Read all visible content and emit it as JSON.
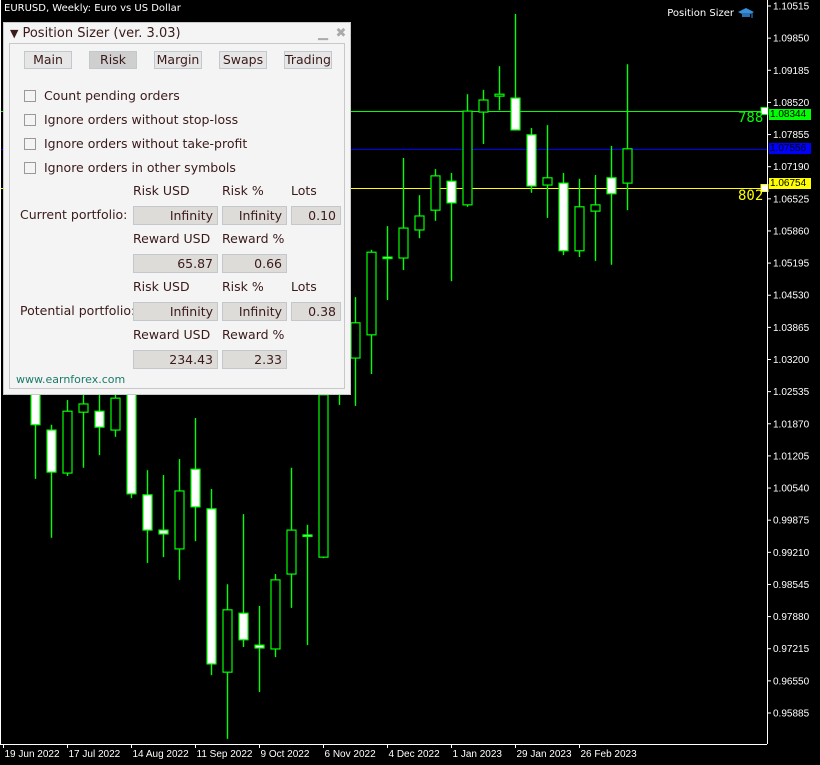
{
  "chart_header": {
    "title": "EURUSD, Weekly:  Euro vs US Dollar",
    "indicator_label": "Position Sizer"
  },
  "panel": {
    "title": "Position Sizer (ver. 3.03)",
    "collapse_icon": "triangle-down",
    "tabs": [
      {
        "label": "Main"
      },
      {
        "label": "Risk",
        "active": true
      },
      {
        "label": "Margin"
      },
      {
        "label": "Swaps"
      },
      {
        "label": "Trading"
      }
    ],
    "checkboxes": [
      {
        "label": "Count pending orders",
        "checked": false
      },
      {
        "label": "Ignore orders without stop-loss",
        "checked": false
      },
      {
        "label": "Ignore orders without take-profit",
        "checked": false
      },
      {
        "label": "Ignore orders in other symbols",
        "checked": false
      }
    ],
    "headers": {
      "risk_usd": "Risk USD",
      "risk_pct": "Risk %",
      "lots": "Lots",
      "reward_usd": "Reward USD",
      "reward_pct": "Reward %"
    },
    "current": {
      "label": "Current portfolio:",
      "risk_usd": "Infinity",
      "risk_pct": "Infinity",
      "lots": "0.10",
      "reward_usd": "65.87",
      "reward_pct": "0.66"
    },
    "potential": {
      "label": "Potential portfolio:",
      "risk_usd": "Infinity",
      "risk_pct": "Infinity",
      "lots": "0.38",
      "reward_usd": "234.43",
      "reward_pct": "2.33"
    },
    "link": "www.earnforex.com"
  },
  "levels": {
    "take_profit": {
      "price": "1.08344",
      "points": "788",
      "color": "#00ff00"
    },
    "entry": {
      "price": "1.07556",
      "color": "#0000ff"
    },
    "stop_loss": {
      "price": "1.06754",
      "points": "802",
      "color": "#ffff00"
    }
  },
  "chart_data": {
    "type": "candlestick",
    "symbol": "EURUSD",
    "timeframe": "Weekly",
    "ylim": [
      0.95885,
      1.10515
    ],
    "y_ticks": [
      "1.10515",
      "1.09850",
      "1.09185",
      "1.08520",
      "1.07855",
      "1.07190",
      "1.06525",
      "1.05860",
      "1.05195",
      "1.04530",
      "1.03865",
      "1.03200",
      "1.02535",
      "1.01870",
      "1.01205",
      "1.00540",
      "0.99875",
      "0.99210",
      "0.98545",
      "0.97880",
      "0.97215",
      "0.96550",
      "0.95885"
    ],
    "x_ticks": [
      "19 Jun 2022",
      "17 Jul 2022",
      "14 Aug 2022",
      "11 Sep 2022",
      "9 Oct 2022",
      "6 Nov 2022",
      "4 Dec 2022",
      "1 Jan 2023",
      "29 Jan 2023",
      "26 Feb 2023"
    ],
    "colors": {
      "bull_fill": "#000000",
      "bear_fill": "#ffffff",
      "outline": "#00ff00"
    },
    "candles": [
      [
        1.0257,
        1.0278,
        1.0073,
        1.0185
      ],
      [
        1.0174,
        1.0185,
        0.9951,
        1.0087
      ],
      [
        1.0085,
        1.0236,
        1.0079,
        1.0213
      ],
      [
        1.0211,
        1.0257,
        1.0096,
        1.0228
      ],
      [
        1.0213,
        1.0247,
        1.0122,
        1.018
      ],
      [
        1.0174,
        1.0267,
        1.016,
        1.024
      ],
      [
        1.0253,
        1.0267,
        1.0033,
        1.0042
      ],
      [
        1.004,
        1.0091,
        0.9899,
        0.9967
      ],
      [
        0.9967,
        1.0081,
        0.9911,
        0.9959
      ],
      [
        0.9928,
        1.0114,
        0.9864,
        1.0048
      ],
      [
        1.0093,
        1.0199,
        0.9944,
        1.0015
      ],
      [
        1.0011,
        1.0052,
        0.9667,
        0.969
      ],
      [
        0.9673,
        0.9855,
        0.9535,
        0.9802
      ],
      [
        0.9795,
        1.0,
        0.9725,
        0.974
      ],
      [
        0.9729,
        0.981,
        0.9632,
        0.9723
      ],
      [
        0.9721,
        0.9876,
        0.9704,
        0.9864
      ],
      [
        0.9876,
        1.0096,
        0.9806,
        0.9967
      ],
      [
        0.9957,
        0.9978,
        0.9729,
        0.9957
      ],
      [
        0.9911,
        1.0257,
        0.9909,
        1.0247
      ],
      [
        1.0253,
        1.034,
        1.0226,
        1.0319
      ],
      [
        1.0323,
        1.0449,
        1.0224,
        1.0396
      ],
      [
        1.0371,
        1.0547,
        1.029,
        1.0542
      ],
      [
        1.0532,
        1.0596,
        1.0443,
        1.0532
      ],
      [
        1.053,
        1.0737,
        1.0505,
        1.0592
      ],
      [
        1.0588,
        1.066,
        1.0571,
        1.0617
      ],
      [
        1.0629,
        1.0714,
        1.0607,
        1.07
      ],
      [
        1.0689,
        1.0706,
        1.0482,
        1.0644
      ],
      [
        1.064,
        1.0869,
        1.0636,
        1.0834
      ],
      [
        1.0832,
        1.0878,
        1.0766,
        1.0857
      ],
      [
        1.0865,
        1.0927,
        1.0836,
        1.0869
      ],
      [
        1.0861,
        1.1035,
        1.0795,
        1.0795
      ],
      [
        1.0785,
        1.0799,
        1.0665,
        1.0679
      ],
      [
        1.0681,
        1.0805,
        1.0613,
        1.0696
      ],
      [
        1.0685,
        1.0706,
        1.0536,
        1.0545
      ],
      [
        1.0545,
        1.0694,
        1.0532,
        1.0636
      ],
      [
        1.0627,
        1.0702,
        1.0524,
        1.064
      ],
      [
        1.0696,
        1.0762,
        1.0516,
        1.0663
      ],
      [
        1.0685,
        1.0931,
        1.0629,
        1.0756
      ]
    ],
    "candle_fields": [
      "open",
      "high",
      "low",
      "close"
    ],
    "first_candle_week": "3 Jul 2022"
  }
}
